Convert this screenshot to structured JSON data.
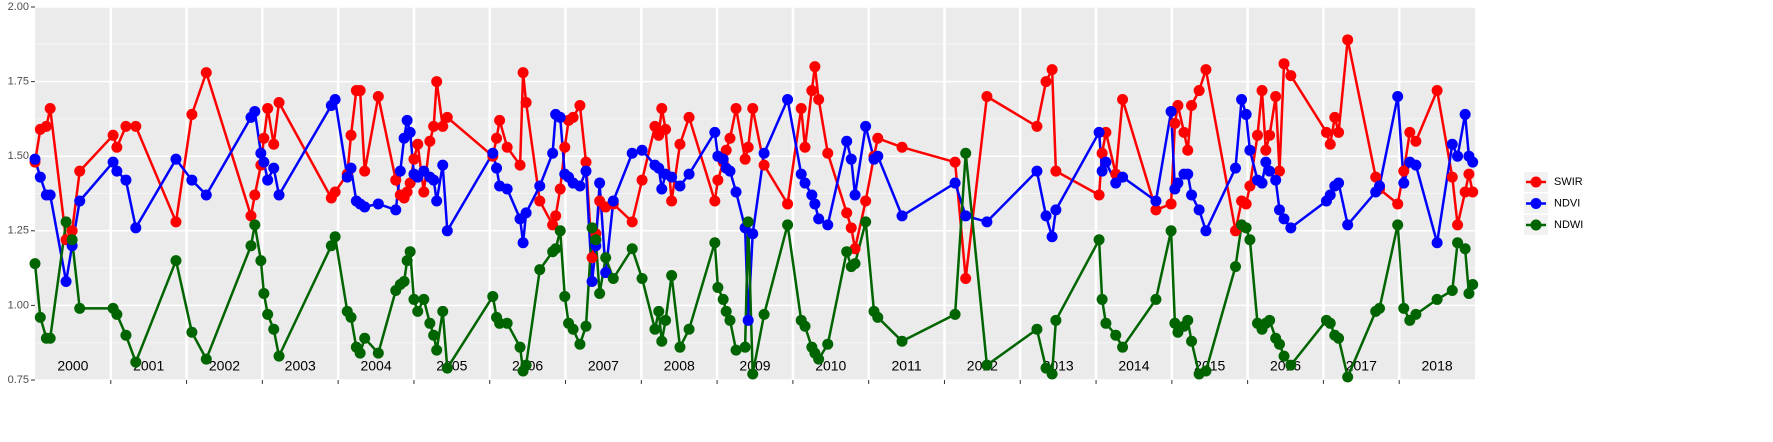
{
  "chart_data": {
    "type": "line",
    "x": [
      2000.0,
      2000.07,
      2000.15,
      2000.2,
      2000.41,
      2000.49,
      2000.59,
      2001.03,
      2001.08,
      2001.2,
      2001.33,
      2001.86,
      2002.07,
      2002.26,
      2002.85,
      2002.9,
      2002.98,
      2003.02,
      2003.07,
      2003.15,
      2003.22,
      2003.91,
      2003.96,
      2004.12,
      2004.17,
      2004.24,
      2004.29,
      2004.35,
      2004.53,
      2004.76,
      2004.82,
      2004.87,
      2004.91,
      2004.95,
      2005.0,
      2005.05,
      2005.13,
      2005.21,
      2005.26,
      2005.3,
      2005.38,
      2005.44,
      2006.04,
      2006.09,
      2006.13,
      2006.23,
      2006.4,
      2006.44,
      2006.48,
      2006.66,
      2006.83,
      2006.87,
      2006.93,
      2006.99,
      2007.04,
      2007.1,
      2007.19,
      2007.27,
      2007.35,
      2007.4,
      2007.45,
      2007.53,
      2007.63,
      2007.88,
      2008.01,
      2008.18,
      2008.23,
      2008.27,
      2008.32,
      2008.4,
      2008.51,
      2008.63,
      2008.97,
      2009.01,
      2009.08,
      2009.12,
      2009.17,
      2009.25,
      2009.37,
      2009.41,
      2009.47,
      2009.62,
      2009.93,
      2010.11,
      2010.16,
      2010.25,
      2010.29,
      2010.34,
      2010.46,
      2010.71,
      2010.77,
      2010.82,
      2010.96,
      2011.07,
      2011.12,
      2011.44,
      2012.14,
      2012.28,
      2012.56,
      2013.22,
      2013.34,
      2013.42,
      2013.47,
      2014.04,
      2014.08,
      2014.13,
      2014.26,
      2014.35,
      2014.79,
      2014.99,
      2015.04,
      2015.08,
      2015.16,
      2015.21,
      2015.26,
      2015.36,
      2015.45,
      2015.84,
      2015.92,
      2015.98,
      2016.03,
      2016.13,
      2016.19,
      2016.24,
      2016.29,
      2016.37,
      2016.42,
      2016.48,
      2016.57,
      2017.04,
      2017.09,
      2017.15,
      2017.2,
      2017.32,
      2017.69,
      2017.74,
      2017.98,
      2018.06,
      2018.14,
      2018.22,
      2018.5,
      2018.7,
      2018.77,
      2018.87,
      2018.92,
      2018.97
    ],
    "series": [
      {
        "name": "SWIR",
        "color": "#ff0000",
        "values": [
          1.48,
          1.59,
          1.6,
          1.66,
          1.22,
          1.25,
          1.45,
          1.57,
          1.53,
          1.6,
          1.6,
          1.28,
          1.64,
          1.78,
          1.3,
          1.37,
          1.47,
          1.56,
          1.66,
          1.54,
          1.68,
          1.36,
          1.38,
          1.44,
          1.57,
          1.72,
          1.72,
          1.45,
          1.7,
          1.42,
          1.37,
          1.36,
          1.38,
          1.41,
          1.49,
          1.54,
          1.38,
          1.55,
          1.6,
          1.75,
          1.6,
          1.63,
          1.5,
          1.56,
          1.62,
          1.53,
          1.47,
          1.78,
          1.68,
          1.35,
          1.27,
          1.3,
          1.39,
          1.53,
          1.62,
          1.63,
          1.67,
          1.48,
          1.16,
          1.24,
          1.35,
          1.33,
          1.34,
          1.28,
          1.42,
          1.6,
          1.57,
          1.66,
          1.59,
          1.35,
          1.54,
          1.63,
          1.35,
          1.42,
          1.48,
          1.52,
          1.56,
          1.66,
          1.49,
          1.53,
          1.66,
          1.47,
          1.34,
          1.66,
          1.53,
          1.72,
          1.8,
          1.69,
          1.51,
          1.31,
          1.26,
          1.19,
          1.35,
          1.5,
          1.56,
          1.53,
          1.48,
          1.09,
          1.7,
          1.6,
          1.75,
          1.79,
          1.45,
          1.37,
          1.51,
          1.58,
          1.44,
          1.69,
          1.32,
          1.34,
          1.61,
          1.67,
          1.58,
          1.52,
          1.67,
          1.72,
          1.79,
          1.25,
          1.35,
          1.34,
          1.4,
          1.57,
          1.72,
          1.52,
          1.57,
          1.7,
          1.45,
          1.81,
          1.77,
          1.58,
          1.54,
          1.63,
          1.58,
          1.89,
          1.43,
          1.39,
          1.34,
          1.45,
          1.58,
          1.55,
          1.72,
          1.43,
          1.27,
          1.38,
          1.44,
          1.38
        ]
      },
      {
        "name": "NDVI",
        "color": "#0000ff",
        "values": [
          1.49,
          1.43,
          1.37,
          1.37,
          1.08,
          1.2,
          1.35,
          1.48,
          1.45,
          1.42,
          1.26,
          1.49,
          1.42,
          1.37,
          1.63,
          1.65,
          1.51,
          1.48,
          1.42,
          1.46,
          1.37,
          1.67,
          1.69,
          1.43,
          1.46,
          1.35,
          1.34,
          1.33,
          1.34,
          1.32,
          1.45,
          1.56,
          1.62,
          1.58,
          1.44,
          1.43,
          1.45,
          1.43,
          1.42,
          1.35,
          1.47,
          1.25,
          1.51,
          1.46,
          1.4,
          1.39,
          1.29,
          1.21,
          1.31,
          1.4,
          1.51,
          1.64,
          1.63,
          1.44,
          1.43,
          1.41,
          1.4,
          1.45,
          1.08,
          1.2,
          1.41,
          1.11,
          1.35,
          1.51,
          1.52,
          1.47,
          1.46,
          1.39,
          1.44,
          1.43,
          1.4,
          1.44,
          1.58,
          1.5,
          1.49,
          1.46,
          1.45,
          1.38,
          1.26,
          0.95,
          1.24,
          1.51,
          1.69,
          1.44,
          1.41,
          1.37,
          1.34,
          1.29,
          1.27,
          1.55,
          1.49,
          1.37,
          1.6,
          1.49,
          1.5,
          1.3,
          1.41,
          1.3,
          1.28,
          1.45,
          1.3,
          1.23,
          1.32,
          1.58,
          1.45,
          1.48,
          1.41,
          1.43,
          1.35,
          1.65,
          1.39,
          1.41,
          1.44,
          1.44,
          1.37,
          1.32,
          1.25,
          1.46,
          1.69,
          1.64,
          1.52,
          1.42,
          1.41,
          1.48,
          1.45,
          1.42,
          1.32,
          1.29,
          1.26,
          1.35,
          1.37,
          1.4,
          1.41,
          1.27,
          1.38,
          1.4,
          1.7,
          1.41,
          1.48,
          1.47,
          1.21,
          1.54,
          1.5,
          1.64,
          1.5,
          1.48
        ]
      },
      {
        "name": "NDWI",
        "color": "#006400",
        "values": [
          1.14,
          0.96,
          0.89,
          0.89,
          1.28,
          1.22,
          0.99,
          0.99,
          0.97,
          0.9,
          0.81,
          1.15,
          0.91,
          0.82,
          1.2,
          1.27,
          1.15,
          1.04,
          0.97,
          0.92,
          0.83,
          1.2,
          1.23,
          0.98,
          0.96,
          0.86,
          0.84,
          0.89,
          0.84,
          1.05,
          1.07,
          1.08,
          1.15,
          1.18,
          1.02,
          0.98,
          1.02,
          0.94,
          0.9,
          0.85,
          0.98,
          0.79,
          1.03,
          0.96,
          0.94,
          0.94,
          0.86,
          0.78,
          0.8,
          1.12,
          1.18,
          1.19,
          1.25,
          1.03,
          0.94,
          0.92,
          0.87,
          0.93,
          1.26,
          1.22,
          1.04,
          1.16,
          1.09,
          1.19,
          1.09,
          0.92,
          0.98,
          0.88,
          0.95,
          1.1,
          0.86,
          0.92,
          1.21,
          1.06,
          1.02,
          0.98,
          0.95,
          0.85,
          0.86,
          1.28,
          0.77,
          0.97,
          1.27,
          0.95,
          0.93,
          0.86,
          0.84,
          0.82,
          0.87,
          1.18,
          1.13,
          1.14,
          1.28,
          0.98,
          0.96,
          0.88,
          0.97,
          1.51,
          0.8,
          0.92,
          0.79,
          0.77,
          0.95,
          1.22,
          1.02,
          0.94,
          0.9,
          0.86,
          1.02,
          1.25,
          0.94,
          0.91,
          0.93,
          0.95,
          0.88,
          0.77,
          0.78,
          1.13,
          1.27,
          1.26,
          1.22,
          0.94,
          0.92,
          0.94,
          0.95,
          0.89,
          0.87,
          0.83,
          0.8,
          0.95,
          0.94,
          0.9,
          0.89,
          0.76,
          0.98,
          0.99,
          1.27,
          0.99,
          0.95,
          0.97,
          1.02,
          1.05,
          1.21,
          1.19,
          1.04,
          1.07
        ]
      }
    ],
    "xlim": [
      2000,
      2019
    ],
    "xticks": [
      {
        "value": 2000.5,
        "label": "2000"
      },
      {
        "value": 2001.5,
        "label": "2001"
      },
      {
        "value": 2002.5,
        "label": "2002"
      },
      {
        "value": 2003.5,
        "label": "2003"
      },
      {
        "value": 2004.5,
        "label": "2004"
      },
      {
        "value": 2005.5,
        "label": "2005"
      },
      {
        "value": 2006.5,
        "label": "2006"
      },
      {
        "value": 2007.5,
        "label": "2007"
      },
      {
        "value": 2008.5,
        "label": "2008"
      },
      {
        "value": 2009.5,
        "label": "2009"
      },
      {
        "value": 2010.5,
        "label": "2010"
      },
      {
        "value": 2011.5,
        "label": "2011"
      },
      {
        "value": 2012.5,
        "label": "2012"
      },
      {
        "value": 2013.5,
        "label": "2013"
      },
      {
        "value": 2014.5,
        "label": "2014"
      },
      {
        "value": 2015.5,
        "label": "2015"
      },
      {
        "value": 2016.5,
        "label": "2016"
      },
      {
        "value": 2017.5,
        "label": "2017"
      },
      {
        "value": 2018.5,
        "label": "2018"
      }
    ],
    "xgrid": [
      2001,
      2002,
      2003,
      2004,
      2005,
      2006,
      2007,
      2008,
      2009,
      2010,
      2011,
      2012,
      2013,
      2014,
      2015,
      2016,
      2017,
      2018
    ],
    "ylim": [
      0.75,
      2.0
    ],
    "yticks": [
      {
        "value": 0.75,
        "label": "0.75"
      },
      {
        "value": 1.0,
        "label": "1.00"
      },
      {
        "value": 1.25,
        "label": "1.25"
      },
      {
        "value": 1.5,
        "label": "1.50"
      },
      {
        "value": 1.75,
        "label": "1.75"
      },
      {
        "value": 2.0,
        "label": "2.00"
      }
    ],
    "yminor": [
      0.875,
      1.125,
      1.375,
      1.625,
      1.875
    ],
    "grid": true,
    "legend": "right"
  }
}
